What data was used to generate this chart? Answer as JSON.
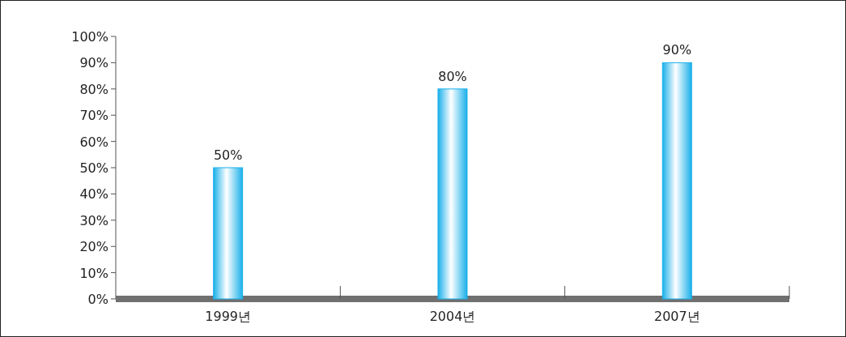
{
  "chart_data": {
    "type": "bar",
    "categories": [
      "1999년",
      "2004년",
      "2007년"
    ],
    "values": [
      50,
      80,
      90
    ],
    "color": "#1ab0ea",
    "value_labels": [
      "50%",
      "80%",
      "90%"
    ],
    "ylim": [
      0,
      100
    ],
    "yticks": [
      {
        "value": 0,
        "label": "0%"
      },
      {
        "value": 10,
        "label": "10%"
      },
      {
        "value": 20,
        "label": "20%"
      },
      {
        "value": 30,
        "label": "30%"
      },
      {
        "value": 40,
        "label": "40%"
      },
      {
        "value": 50,
        "label": "50%"
      },
      {
        "value": 60,
        "label": "60%"
      },
      {
        "value": 70,
        "label": "70%"
      },
      {
        "value": 80,
        "label": "80%"
      },
      {
        "value": 90,
        "label": "90%"
      },
      {
        "value": 100,
        "label": "100%"
      }
    ],
    "grid": false
  }
}
